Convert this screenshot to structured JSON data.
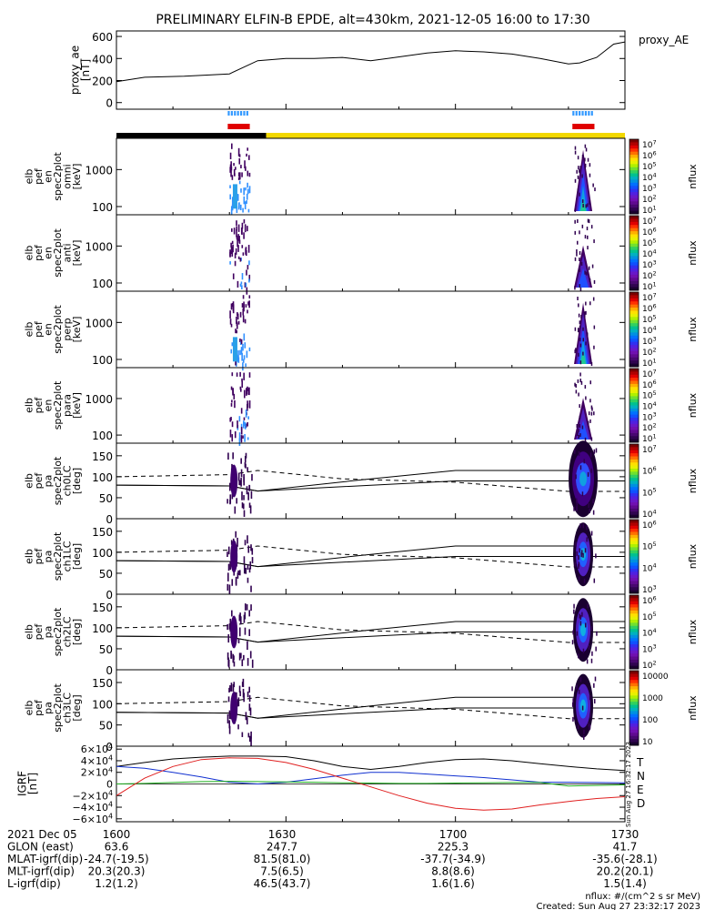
{
  "title": "PRELIMINARY ELFIN-B EPDE, alt=430km, 2021-12-05 16:00 to 17:30",
  "colors": {
    "science_blue": "#3399ff",
    "sci_red": "#e00000",
    "night_black": "#000000",
    "day_yellow": "#f2d800",
    "T": "#000000",
    "N": "#1030d0",
    "E": "#20b020",
    "D": "#e02020"
  },
  "proxy_ae": {
    "ylabel": "proxy_ae\n[nT]",
    "legend": "proxy_AE",
    "yticks": [
      "0",
      "200",
      "400",
      "600"
    ],
    "ylim": [
      -60,
      650
    ],
    "time_min": [
      0,
      5,
      12,
      20,
      25,
      30,
      35,
      40,
      45,
      48,
      55,
      60,
      65,
      70,
      75,
      80,
      82,
      85,
      88,
      90
    ],
    "values": [
      190,
      230,
      240,
      260,
      380,
      400,
      400,
      410,
      380,
      400,
      450,
      470,
      460,
      440,
      400,
      350,
      360,
      410,
      530,
      550
    ]
  },
  "spectrograms": [
    {
      "ylabel": "elb\npef\nen\nspec2plot\nomni\n[keV]",
      "yticks": [
        "100",
        "1000"
      ],
      "cbar_labels": [
        "10^7",
        "10^6",
        "10^5",
        "10^4",
        "10^3",
        "10^2",
        "10^1"
      ],
      "cbar_title": "nflux"
    },
    {
      "ylabel": "elb\npef\nen\nspec2plot\nanti\n[keV]",
      "yticks": [
        "100",
        "1000"
      ],
      "cbar_labels": [
        "10^7",
        "10^6",
        "10^5",
        "10^4",
        "10^3",
        "10^2",
        "10^1"
      ],
      "cbar_title": "nflux"
    },
    {
      "ylabel": "elb\npef\nen\nspec2plot\nperp\n[keV]",
      "yticks": [
        "100",
        "1000"
      ],
      "cbar_labels": [
        "10^7",
        "10^6",
        "10^5",
        "10^4",
        "10^3",
        "10^2",
        "10^1"
      ],
      "cbar_title": "nflux"
    },
    {
      "ylabel": "elb\npef\nen\nspec2plot\npara\n[keV]",
      "yticks": [
        "100",
        "1000"
      ],
      "cbar_labels": [
        "10^7",
        "10^6",
        "10^5",
        "10^4",
        "10^3",
        "10^2",
        "10^1"
      ],
      "cbar_title": "nflux"
    }
  ],
  "pitch_angle": [
    {
      "ylabel": "elb\npef\npa\nspec2plot\nch0LC\n[deg]",
      "yticks": [
        "0",
        "50",
        "100",
        "150"
      ],
      "cbar_labels": [
        "10^7",
        "10^6",
        "10^5",
        "10^4"
      ],
      "cbar_title": "nflux"
    },
    {
      "ylabel": "elb\npef\npa\nspec2plot\nch1LC\n[deg]",
      "yticks": [
        "0",
        "50",
        "100",
        "150"
      ],
      "cbar_labels": [
        "10^6",
        "10^5",
        "10^4",
        "10^3"
      ],
      "cbar_title": "nflux"
    },
    {
      "ylabel": "elb\npef\npa\nspec2plot\nch2LC\n[deg]",
      "yticks": [
        "0",
        "50",
        "100",
        "150"
      ],
      "cbar_labels": [
        "10^6",
        "10^5",
        "10^4",
        "10^3",
        "10^2"
      ],
      "cbar_title": "nflux"
    },
    {
      "ylabel": "elb\npef\npa\nspec2plot\nch3LC\n[deg]",
      "yticks": [
        "0",
        "50",
        "100",
        "150"
      ],
      "cbar_labels": [
        "10000",
        "1000",
        "100",
        "10"
      ],
      "cbar_title": "nflux"
    }
  ],
  "igrf": {
    "ylabel": "IGRF\n[nT]",
    "yticks": [
      "6×10^4",
      "4×10^4",
      "2×10^4",
      "0",
      "−2×10^4",
      "−4×10^4",
      "−6×10^4"
    ],
    "legend": [
      "T",
      "N",
      "E",
      "D"
    ],
    "time_min": [
      0,
      5,
      10,
      15,
      20,
      25,
      30,
      35,
      40,
      45,
      50,
      55,
      60,
      65,
      70,
      75,
      80,
      85,
      90
    ],
    "T": [
      30000,
      37000,
      43000,
      46000,
      48000,
      48000,
      47000,
      40000,
      30000,
      25000,
      30000,
      37000,
      42000,
      43000,
      40000,
      35000,
      30000,
      26000,
      23000
    ],
    "N": [
      30000,
      27000,
      20000,
      12000,
      3000,
      0,
      3000,
      9000,
      15000,
      20000,
      20000,
      17000,
      14000,
      11000,
      7000,
      3000,
      3000,
      2500,
      2000
    ],
    "E": [
      0,
      1000,
      2500,
      4000,
      4500,
      4000,
      3500,
      3000,
      2000,
      1500,
      1000,
      1000,
      1500,
      2000,
      2500,
      2500,
      -3500,
      -2500,
      -1500
    ],
    "D": [
      -20000,
      10000,
      30000,
      42000,
      45000,
      44000,
      37000,
      25000,
      10000,
      -5000,
      -20000,
      -33000,
      -42000,
      -45000,
      -43000,
      -36000,
      -30000,
      -25000,
      -22000
    ]
  },
  "bottom_axis": {
    "rows": [
      {
        "label": "2021 Dec 05",
        "values": [
          "1600",
          "1630",
          "1700",
          "1730"
        ]
      },
      {
        "label": "GLON (east)",
        "values": [
          "63.6",
          "247.7",
          "225.3",
          "41.7"
        ]
      },
      {
        "label": "MLAT-igrf(dip)",
        "values": [
          "-24.7(-19.5)",
          "81.5(81.0)",
          "-37.7(-34.9)",
          "-35.6(-28.1)"
        ]
      },
      {
        "label": "MLT-igrf(dip)",
        "values": [
          "20.3(20.3)",
          "7.5(6.5)",
          "8.8(8.6)",
          "20.2(20.1)"
        ]
      },
      {
        "label": "L-igrf(dip)",
        "values": [
          "1.2(1.2)",
          "46.5(43.7)",
          "1.6(1.6)",
          "1.5(1.4)"
        ]
      }
    ]
  },
  "footer": {
    "units": "nflux: #/(cm^2 s sr MeV)",
    "created": "Created: Sun Aug 27 23:32:17 2023",
    "side_stamp": "Sun Aug 27 16:32:17 2023"
  },
  "chart_data": [
    {
      "type": "line",
      "title": "PRELIMINARY ELFIN-B EPDE, alt=430km, 2021-12-05 16:00 to 17:30",
      "ylabel": "proxy_ae [nT]",
      "series": [
        {
          "name": "proxy_AE"
        }
      ],
      "xlim_min": [
        0,
        90
      ],
      "ylim": [
        -60,
        650
      ]
    },
    {
      "type": "heatmap",
      "panels": [
        "omni",
        "anti",
        "perp",
        "para"
      ],
      "ylabel": "[keV]",
      "yscale": "log",
      "ylim_keV": [
        60,
        7000
      ],
      "bursts_min": [
        [
          20,
          23
        ],
        [
          81,
          84
        ]
      ]
    },
    {
      "type": "heatmap",
      "panels": [
        "ch0LC",
        "ch1LC",
        "ch2LC",
        "ch3LC"
      ],
      "ylabel": "[deg]",
      "ylim": [
        0,
        180
      ],
      "bursts_min": [
        [
          20,
          23
        ],
        [
          81,
          84
        ]
      ]
    },
    {
      "type": "line",
      "ylabel": "IGRF [nT]",
      "series": [
        {
          "name": "T"
        },
        {
          "name": "N"
        },
        {
          "name": "E"
        },
        {
          "name": "D"
        }
      ],
      "ylim": [
        -65000,
        65000
      ]
    }
  ]
}
